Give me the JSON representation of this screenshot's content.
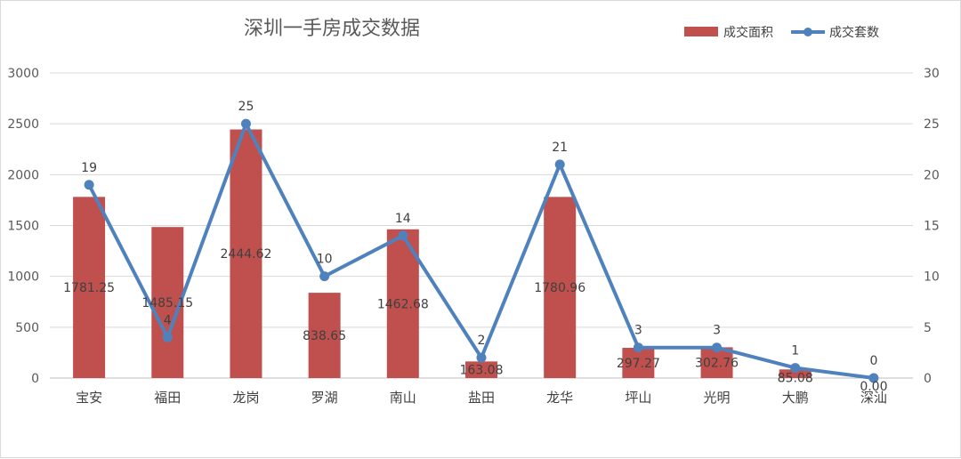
{
  "chart_data": {
    "type": "bar",
    "title": "深圳一手房成交数据",
    "categories": [
      "宝安",
      "福田",
      "龙岗",
      "罗湖",
      "南山",
      "盐田",
      "龙华",
      "坪山",
      "光明",
      "大鹏",
      "深汕"
    ],
    "series": [
      {
        "name": "成交面积",
        "type": "bar",
        "axis": "left",
        "color": "#c0504d",
        "values": [
          1781.25,
          1485.15,
          2444.62,
          838.65,
          1462.68,
          163.08,
          1780.96,
          297.27,
          302.76,
          85.08,
          0.0
        ],
        "labels": [
          "1781.25",
          "1485.15",
          "2444.62",
          "838.65",
          "1462.68",
          "163.08",
          "1780.96",
          "297.27",
          "302.76",
          "85.08",
          "0.00"
        ]
      },
      {
        "name": "成交套数",
        "type": "line",
        "axis": "right",
        "color": "#4f81bd",
        "values": [
          19,
          4,
          25,
          10,
          14,
          2,
          21,
          3,
          3,
          1,
          0
        ],
        "labels": [
          "19",
          "4",
          "25",
          "10",
          "14",
          "2",
          "21",
          "3",
          "3",
          "1",
          "0"
        ]
      }
    ],
    "y_left": {
      "min": 0,
      "max": 3000,
      "ticks": [
        "0",
        "500",
        "1000",
        "1500",
        "2000",
        "2500",
        "3000"
      ]
    },
    "y_right": {
      "min": 0,
      "max": 30,
      "ticks": [
        "0",
        "5",
        "10",
        "15",
        "20",
        "25",
        "30"
      ]
    },
    "grid": true,
    "legend_position": "top-right"
  }
}
